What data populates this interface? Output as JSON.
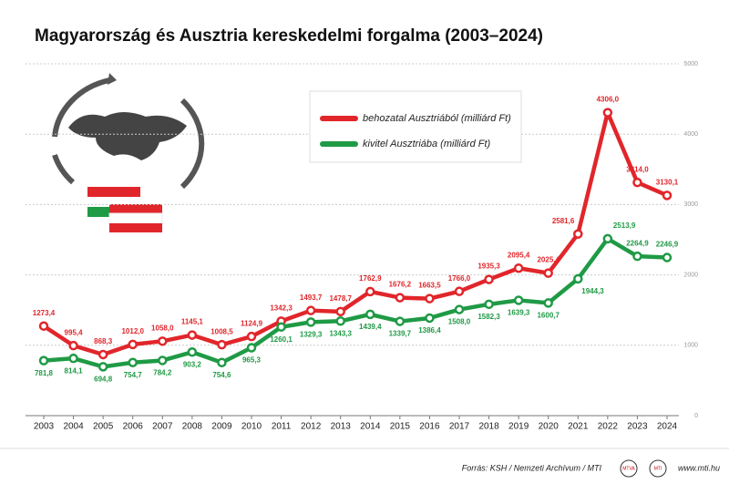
{
  "chart_data": {
    "type": "line",
    "title": "Magyarország és Ausztria kereskedelmi forgalma (2003–2024)",
    "categories": [
      "2003",
      "2004",
      "2005",
      "2006",
      "2007",
      "2008",
      "2009",
      "2010",
      "2011",
      "2012",
      "2013",
      "2014",
      "2015",
      "2016",
      "2017",
      "2018",
      "2019",
      "2020",
      "2021",
      "2022",
      "2023",
      "2024"
    ],
    "series": [
      {
        "name": "behozatal Ausztriából (milliárd Ft)",
        "color": "#e1262b",
        "values": [
          1273.4,
          995.4,
          868.3,
          1012.0,
          1058.0,
          1145.1,
          1008.5,
          1124.9,
          1342.3,
          1493.7,
          1478.7,
          1762.9,
          1676.2,
          1663.5,
          1766.0,
          1935.3,
          2095.4,
          2025.4,
          2581.6,
          4306.0,
          3314.0,
          3130.1
        ],
        "value_labels": [
          "1273,4",
          "995,4",
          "868,3",
          "1012,0",
          "1058,0",
          "1145,1",
          "1008,5",
          "1124,9",
          "1342,3",
          "1493,7",
          "1478,7",
          "1762,9",
          "1676,2",
          "1663,5",
          "1766,0",
          "1935,3",
          "2095,4",
          "2025,4",
          "2581,6",
          "4306,0",
          "3314,0",
          "3130,1"
        ]
      },
      {
        "name": "kivitel Ausztriába (milliárd Ft)",
        "color": "#1f9a45",
        "values": [
          781.8,
          814.1,
          694.8,
          754.7,
          784.2,
          903.2,
          754.6,
          965.3,
          1260.1,
          1329.3,
          1343.3,
          1439.4,
          1339.7,
          1386.4,
          1508.0,
          1582.3,
          1639.3,
          1600.7,
          1944.3,
          2513.9,
          2264.9,
          2246.9
        ],
        "value_labels": [
          "781,8",
          "814,1",
          "694,8",
          "754,7",
          "784,2",
          "903,2",
          "754,6",
          "965,3",
          "1260,1",
          "1329,3",
          "1343,3",
          "1439,4",
          "1339,7",
          "1386,4",
          "1508,0",
          "1582,3",
          "1639,3",
          "1600,7",
          "1944,3",
          "2513,9",
          "2264,9",
          "2246,9"
        ]
      }
    ],
    "ylim": [
      0,
      5000
    ],
    "yticks": [
      0,
      1000,
      2000,
      3000,
      4000,
      5000
    ],
    "grid": true,
    "legend_position": "top",
    "source": "Forrás: KSH / Nemzeti Archívum / MTI",
    "logos": [
      "MTVA",
      "MTI"
    ],
    "url": "www.mti.hu"
  }
}
